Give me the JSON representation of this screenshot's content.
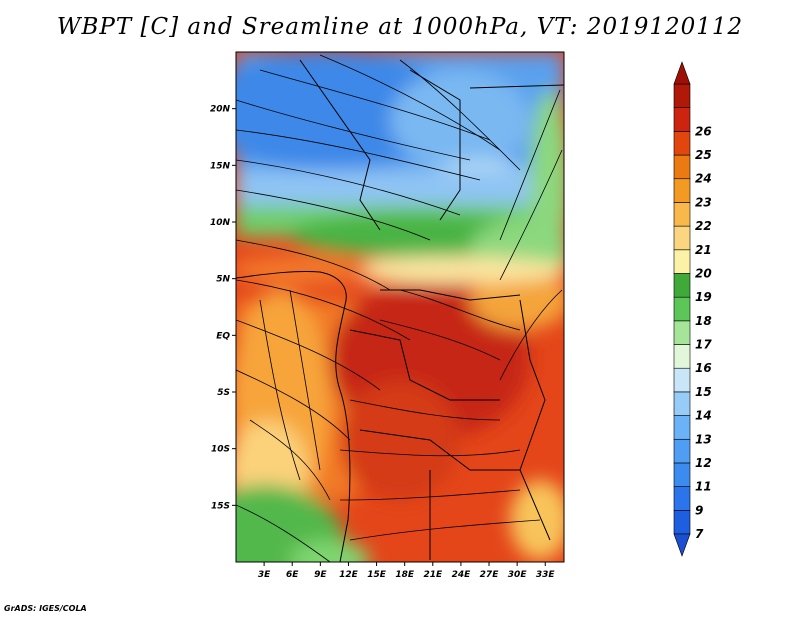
{
  "title": "WBPT [C] and Sreamline at 1000hPa, VT: 2019120112",
  "footer": "GrADS: IGES/COLA",
  "map": {
    "lon_range": [
      0,
      35
    ],
    "lat_range": [
      -20,
      25
    ],
    "lat_ticks": [
      {
        "value": 20,
        "label": "20N"
      },
      {
        "value": 15,
        "label": "15N"
      },
      {
        "value": 10,
        "label": "10N"
      },
      {
        "value": 5,
        "label": "5N"
      },
      {
        "value": 0,
        "label": "EQ"
      },
      {
        "value": -5,
        "label": "5S"
      },
      {
        "value": -10,
        "label": "10S"
      },
      {
        "value": -15,
        "label": "15S"
      }
    ],
    "lon_ticks": [
      {
        "value": 3,
        "label": "3E"
      },
      {
        "value": 6,
        "label": "6E"
      },
      {
        "value": 9,
        "label": "9E"
      },
      {
        "value": 12,
        "label": "12E"
      },
      {
        "value": 15,
        "label": "15E"
      },
      {
        "value": 18,
        "label": "18E"
      },
      {
        "value": 21,
        "label": "21E"
      },
      {
        "value": 24,
        "label": "24E"
      },
      {
        "value": 27,
        "label": "27E"
      },
      {
        "value": 30,
        "label": "30E"
      },
      {
        "value": 33,
        "label": "33E"
      }
    ]
  },
  "colorbar": {
    "levels": [
      {
        "label": "7",
        "color": "#1e5ee0"
      },
      {
        "label": "9",
        "color": "#2b74ea"
      },
      {
        "label": "11",
        "color": "#3c8cf0"
      },
      {
        "label": "12",
        "color": "#4f9ef4"
      },
      {
        "label": "13",
        "color": "#6cb2f6"
      },
      {
        "label": "14",
        "color": "#97cbf8"
      },
      {
        "label": "15",
        "color": "#c8e6f8"
      },
      {
        "label": "16",
        "color": "#e2f6da"
      },
      {
        "label": "17",
        "color": "#a6e49a"
      },
      {
        "label": "18",
        "color": "#5cc659"
      },
      {
        "label": "19",
        "color": "#3faa3a"
      },
      {
        "label": "20",
        "color": "#fbf2a8"
      },
      {
        "label": "21",
        "color": "#fbd680"
      },
      {
        "label": "22",
        "color": "#f8b84c"
      },
      {
        "label": "23",
        "color": "#f39a22"
      },
      {
        "label": "24",
        "color": "#ec7a12"
      },
      {
        "label": "25",
        "color": "#e0460e"
      },
      {
        "label": "26",
        "color": "#cc2410"
      },
      {
        "label": "",
        "color": "#b01808"
      }
    ],
    "lower_arrow_color": "#1a4fd0",
    "upper_arrow_color": "#9e1006"
  }
}
